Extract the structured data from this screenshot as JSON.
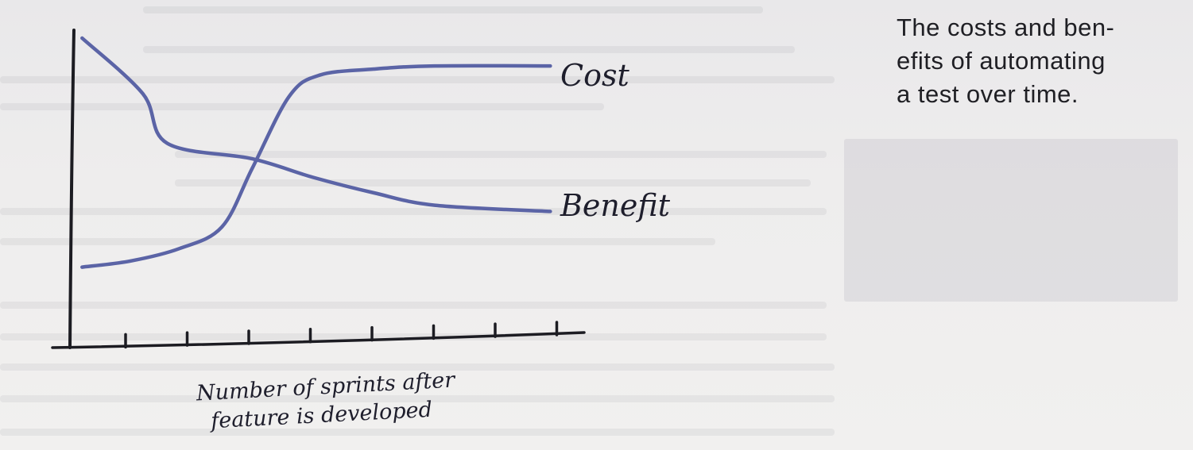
{
  "caption": {
    "lines": [
      "The costs and ben-",
      "efits of automating",
      "a test over time."
    ]
  },
  "colors": {
    "series_line": "#5b64a6",
    "axis": "#1c1c22",
    "text": "#1f1f24"
  },
  "chart_data": {
    "type": "line",
    "title": "",
    "xlabel_lines": [
      "Number of sprints after",
      "feature is developed"
    ],
    "ylabel": "",
    "x_ticks": 8,
    "xlim": [
      0,
      8
    ],
    "ylim": [
      0,
      10
    ],
    "grid": false,
    "legend": "inline-right",
    "series": [
      {
        "name": "Cost",
        "x": [
          0.2,
          1.0,
          1.8,
          2.5,
          3.0,
          3.6,
          4.1,
          5.0,
          6.0,
          7.9
        ],
        "y": [
          2.6,
          2.8,
          3.2,
          3.9,
          5.8,
          8.1,
          8.8,
          9.0,
          9.1,
          9.1
        ]
      },
      {
        "name": "Benefit",
        "x": [
          0.2,
          1.2,
          1.6,
          3.0,
          4.0,
          5.0,
          6.0,
          7.9
        ],
        "y": [
          10.0,
          8.2,
          6.6,
          6.1,
          5.5,
          5.0,
          4.6,
          4.4
        ]
      }
    ]
  }
}
